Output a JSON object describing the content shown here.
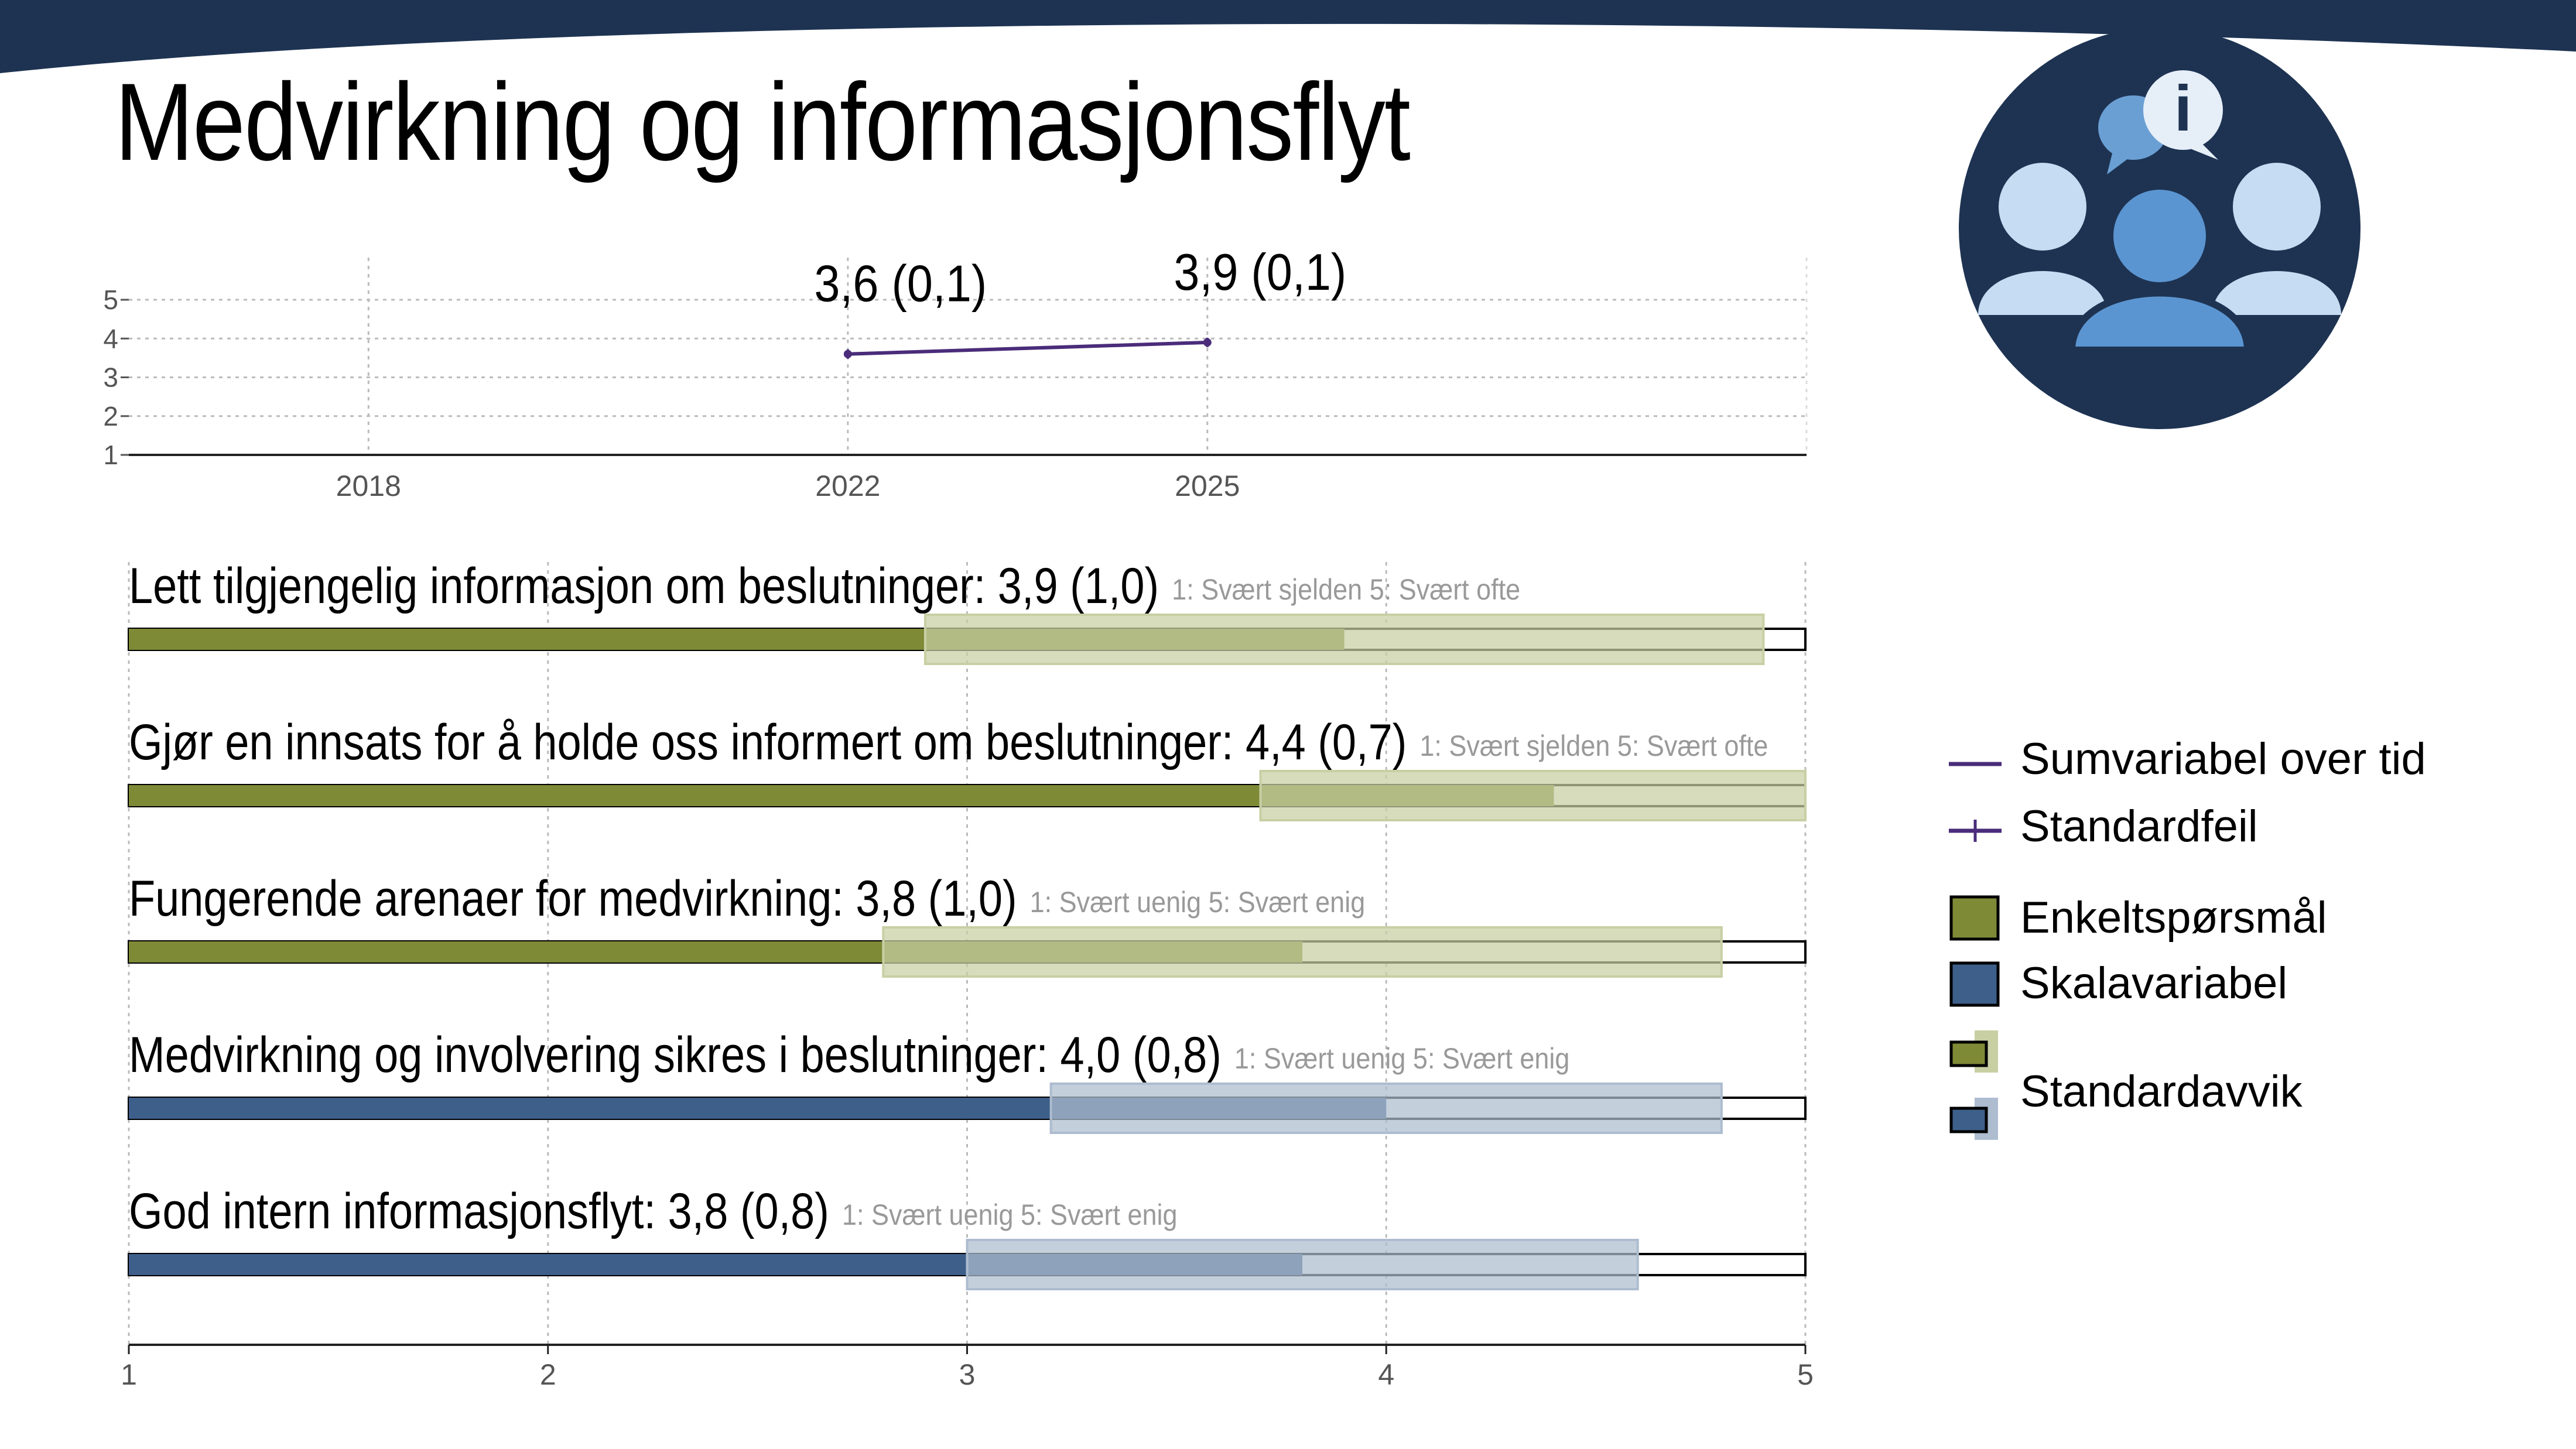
{
  "title": "Medvirkning og informasjonsflyt",
  "icon": "people-info-icon",
  "colors": {
    "banner": "#1e3352",
    "line": "#4a2c7a",
    "green": "#7f8a37",
    "green_light": "#c8cfa3",
    "blue": "#3d5f8a",
    "blue_light": "#adbccf",
    "logo_bg": "#1e3352"
  },
  "chart_data": [
    {
      "type": "line",
      "x": [
        2022,
        2025
      ],
      "y": [
        3.6,
        3.9
      ],
      "point_labels": [
        "3,6 (0,1)",
        "3,9 (0,1)"
      ],
      "x_ticks": [
        "2018",
        "2022",
        "2025"
      ],
      "x_tick_values": [
        2018,
        2022,
        2025
      ],
      "y_ticks": [
        "1",
        "2",
        "3",
        "4",
        "5"
      ],
      "xlim": [
        2016,
        2030
      ],
      "ylim": [
        1,
        5
      ],
      "grid": true
    },
    {
      "type": "bar",
      "orientation": "horizontal",
      "xlim": [
        1,
        5
      ],
      "x_ticks": [
        "1",
        "2",
        "3",
        "4",
        "5"
      ],
      "items": [
        {
          "label": "Lett tilgjengelig informasjon om beslutninger: 3,9 (1,0)",
          "scale": "1: Svært sjelden 5: Svært ofte",
          "value": 3.9,
          "sd": 1.0,
          "kind": "enkelt"
        },
        {
          "label": "Gjør en innsats for å holde oss informert om beslutninger: 4,4 (0,7)",
          "scale": "1: Svært sjelden 5: Svært ofte",
          "value": 4.4,
          "sd": 0.7,
          "kind": "enkelt"
        },
        {
          "label": "Fungerende arenaer for medvirkning: 3,8 (1,0)",
          "scale": "1: Svært uenig 5: Svært enig",
          "value": 3.8,
          "sd": 1.0,
          "kind": "enkelt"
        },
        {
          "label": "Medvirkning og involvering sikres i beslutninger: 4,0 (0,8)",
          "scale": "1: Svært uenig 5: Svært enig",
          "value": 4.0,
          "sd": 0.8,
          "kind": "skala"
        },
        {
          "label": "God intern informasjonsflyt: 3,8 (0,8)",
          "scale": "1: Svært uenig 5: Svært enig",
          "value": 3.8,
          "sd": 0.8,
          "kind": "skala"
        }
      ]
    }
  ],
  "legend": {
    "sum_over_time": "Sumvariabel over tid",
    "std_error": "Standardfeil",
    "single_question": "Enkeltspørsmål",
    "scale_variable": "Skalavariabel",
    "std_dev": "Standardavvik"
  }
}
